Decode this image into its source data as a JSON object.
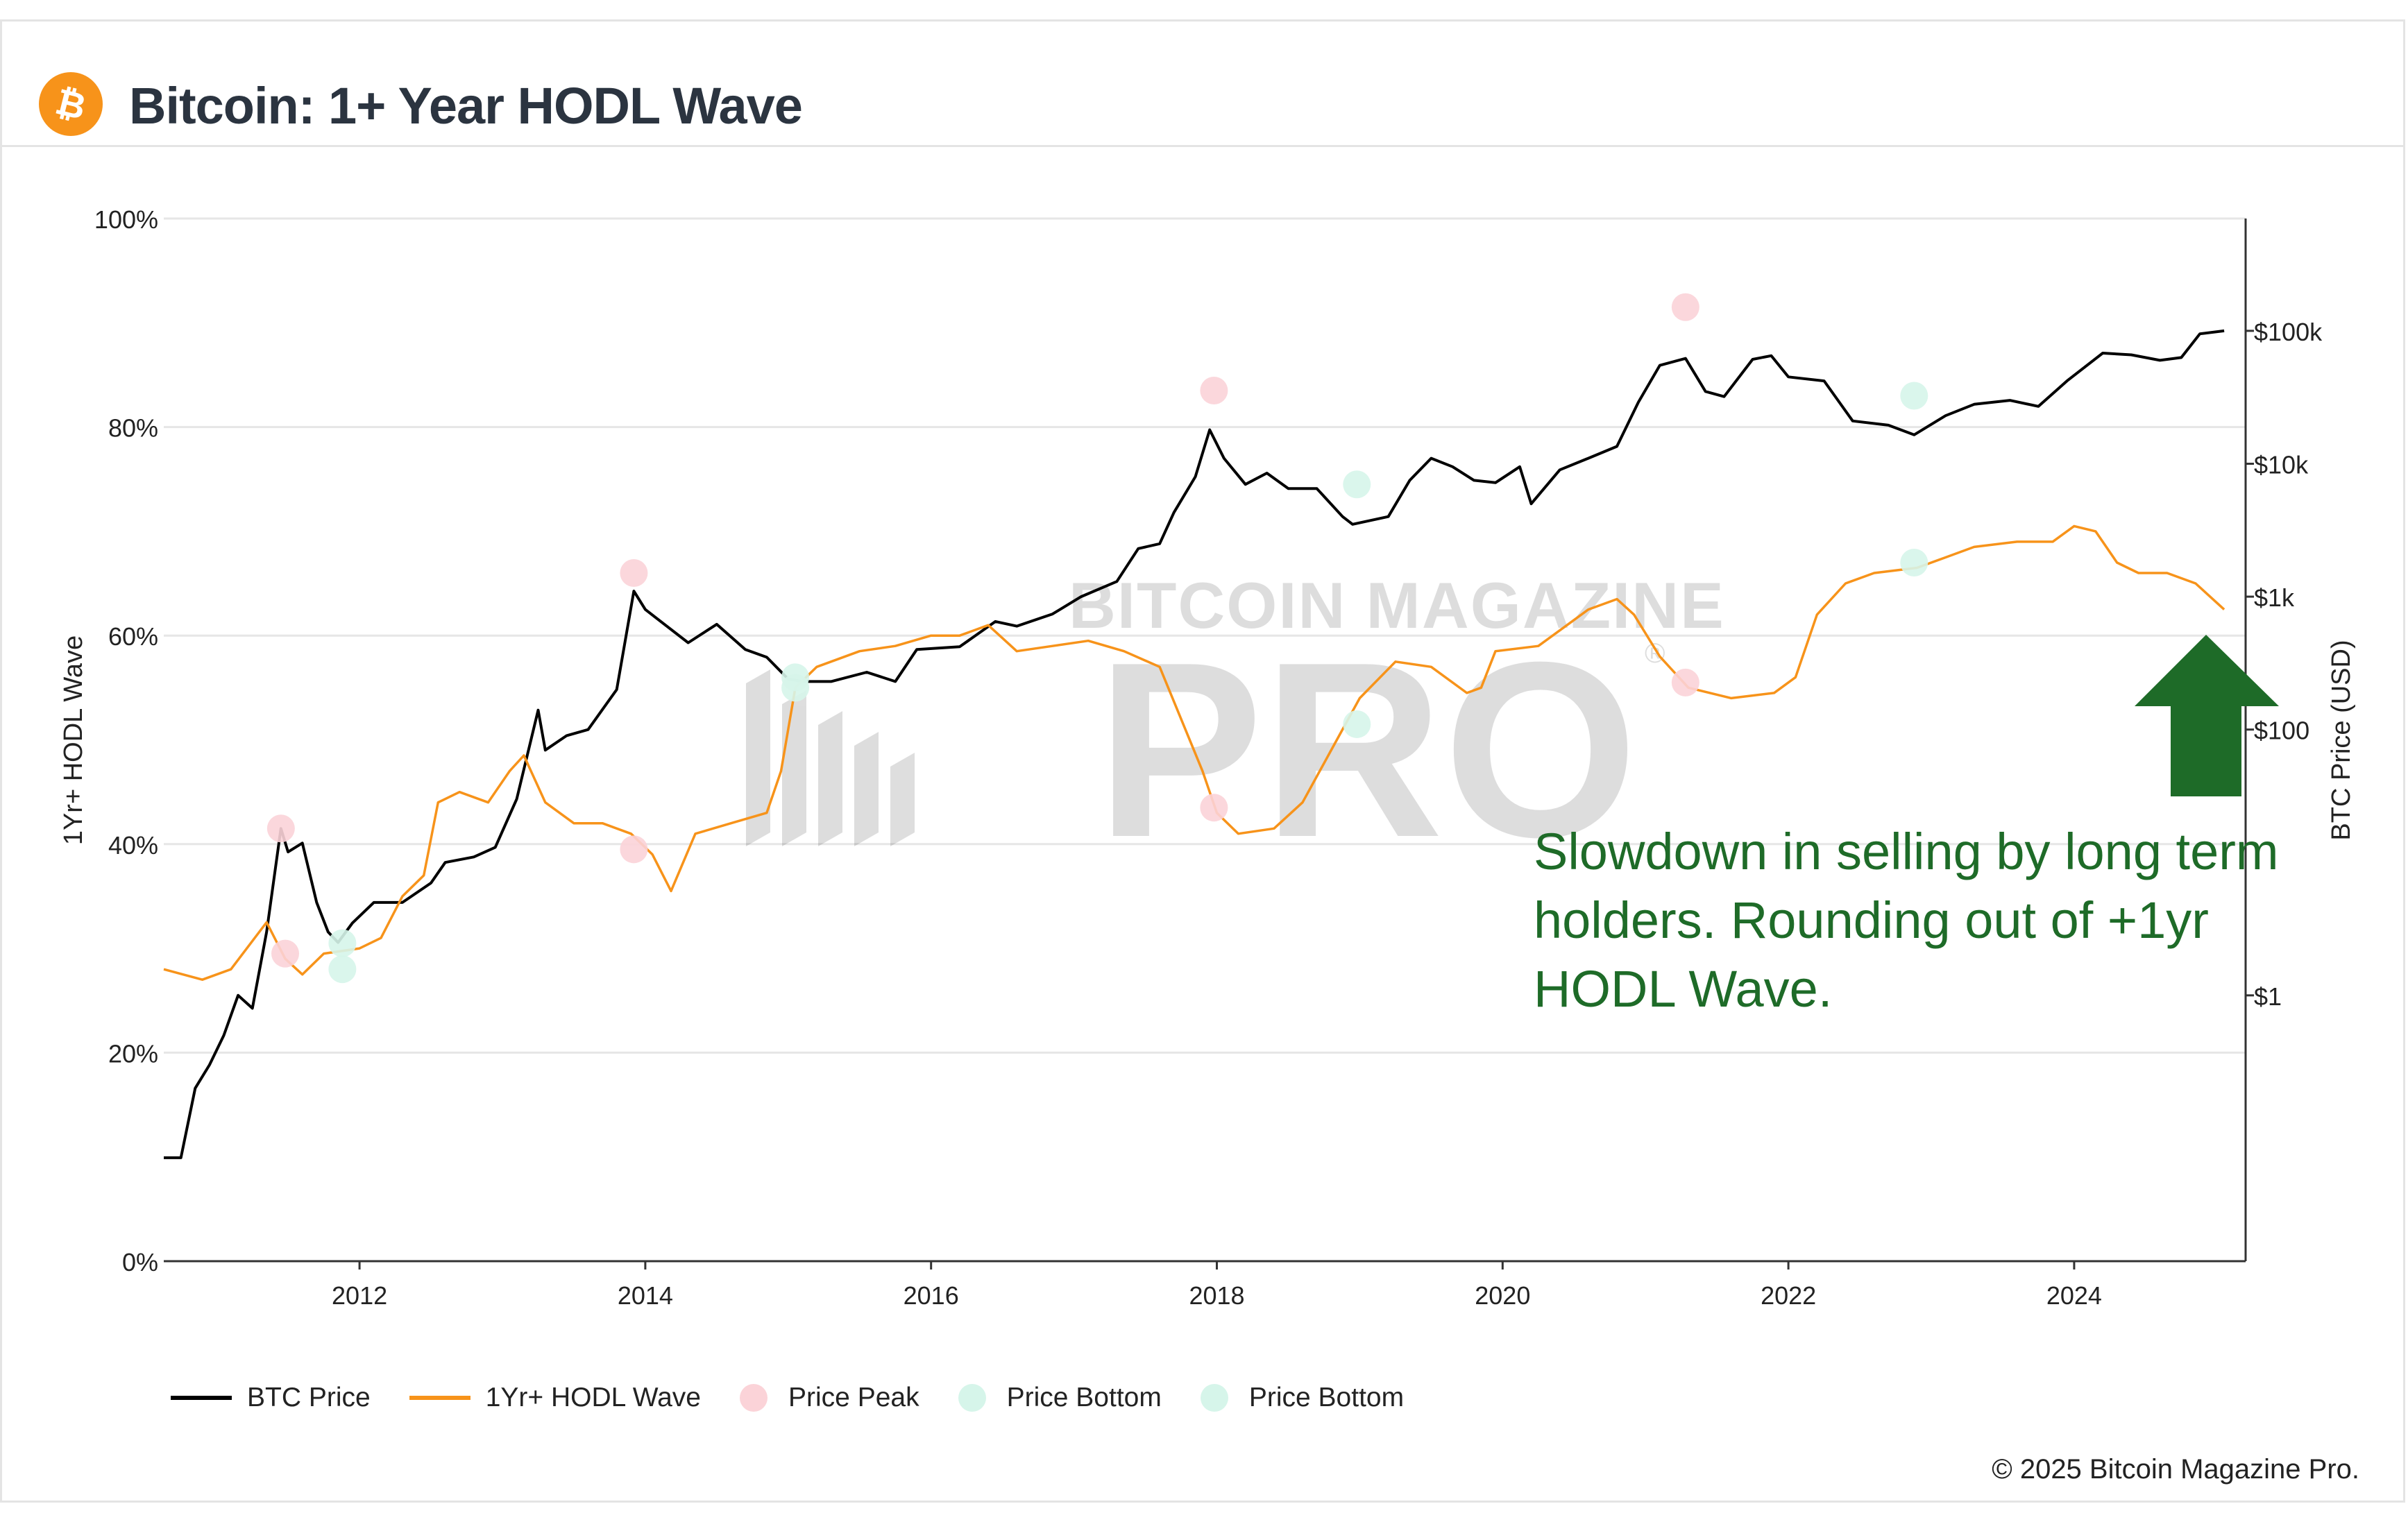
{
  "header": {
    "title": "Bitcoin: 1+ Year HODL Wave",
    "logo_icon": "bitcoin-logo-icon",
    "logo_color": "#f7931a"
  },
  "copyright": "© 2025 Bitcoin Magazine Pro.",
  "watermark": {
    "line1": "BITCOIN MAGAZINE",
    "line2": "PRO",
    "mark": "®"
  },
  "annotation": {
    "text": "Slowdown in selling by long term holders. Rounding out of +1yr HODL Wave.",
    "arrow_icon": "arrow-up-icon",
    "color": "#1e6b28"
  },
  "legend": [
    {
      "label": "BTC Price",
      "kind": "line",
      "color": "#000000"
    },
    {
      "label": "1Yr+ HODL Wave",
      "kind": "line",
      "color": "#f7931a"
    },
    {
      "label": "Price Peak",
      "kind": "dot",
      "color": "#fbd3d8"
    },
    {
      "label": "Price Bottom",
      "kind": "dot",
      "color": "#d6f5ea"
    },
    {
      "label": "Price Bottom",
      "kind": "dot",
      "color": "#d6f5ea"
    }
  ],
  "chart_data": {
    "type": "line",
    "x_axis": {
      "ticks": [
        2012,
        2014,
        2016,
        2018,
        2020,
        2022,
        2024
      ],
      "tick_labels": [
        "2012",
        "2014",
        "2016",
        "2018",
        "2020",
        "2022",
        "2024"
      ],
      "range": [
        2010.63,
        2025.2
      ]
    },
    "y_left": {
      "label": "1Yr+ HODL Wave",
      "ticks": [
        0,
        20,
        40,
        60,
        80,
        100
      ],
      "tick_labels": [
        "0%",
        "20%",
        "40%",
        "60%",
        "80%",
        "100%"
      ],
      "range": [
        0,
        100
      ]
    },
    "y_right": {
      "label": "BTC Price (USD)",
      "scale": "log",
      "ticks": [
        1,
        100,
        1000,
        10000,
        100000
      ],
      "tick_labels": [
        "$1",
        "$100",
        "$1k",
        "$10k",
        "$100k"
      ],
      "range": [
        0.01,
        700000
      ]
    },
    "grid": true,
    "legend_position": "bottom-left",
    "series": [
      {
        "name": "BTC Price",
        "axis": "right",
        "color": "#000000",
        "points": [
          [
            2010.63,
            0.06
          ],
          [
            2010.75,
            0.06
          ],
          [
            2010.85,
            0.2
          ],
          [
            2010.95,
            0.3
          ],
          [
            2011.05,
            0.5
          ],
          [
            2011.15,
            1.0
          ],
          [
            2011.25,
            0.8
          ],
          [
            2011.35,
            3.0
          ],
          [
            2011.45,
            18
          ],
          [
            2011.5,
            12
          ],
          [
            2011.6,
            14
          ],
          [
            2011.7,
            5
          ],
          [
            2011.78,
            3
          ],
          [
            2011.85,
            2.5
          ],
          [
            2011.95,
            3.5
          ],
          [
            2012.1,
            5
          ],
          [
            2012.3,
            5
          ],
          [
            2012.5,
            7
          ],
          [
            2012.6,
            10
          ],
          [
            2012.8,
            11
          ],
          [
            2012.95,
            13
          ],
          [
            2013.1,
            30
          ],
          [
            2013.25,
            140
          ],
          [
            2013.3,
            70
          ],
          [
            2013.45,
            90
          ],
          [
            2013.6,
            100
          ],
          [
            2013.8,
            200
          ],
          [
            2013.92,
            1100
          ],
          [
            2014.0,
            800
          ],
          [
            2014.15,
            600
          ],
          [
            2014.3,
            450
          ],
          [
            2014.5,
            620
          ],
          [
            2014.7,
            400
          ],
          [
            2014.85,
            350
          ],
          [
            2015.0,
            240
          ],
          [
            2015.1,
            230
          ],
          [
            2015.3,
            230
          ],
          [
            2015.55,
            270
          ],
          [
            2015.75,
            230
          ],
          [
            2015.9,
            400
          ],
          [
            2016.2,
            420
          ],
          [
            2016.45,
            650
          ],
          [
            2016.6,
            600
          ],
          [
            2016.85,
            740
          ],
          [
            2017.05,
            1000
          ],
          [
            2017.3,
            1300
          ],
          [
            2017.45,
            2300
          ],
          [
            2017.6,
            2500
          ],
          [
            2017.7,
            4300
          ],
          [
            2017.85,
            8000
          ],
          [
            2017.95,
            18000
          ],
          [
            2018.05,
            11000
          ],
          [
            2018.2,
            7000
          ],
          [
            2018.35,
            8500
          ],
          [
            2018.5,
            6500
          ],
          [
            2018.7,
            6500
          ],
          [
            2018.88,
            4000
          ],
          [
            2018.95,
            3500
          ],
          [
            2019.2,
            4000
          ],
          [
            2019.35,
            7500
          ],
          [
            2019.5,
            11000
          ],
          [
            2019.65,
            9500
          ],
          [
            2019.8,
            7500
          ],
          [
            2019.95,
            7200
          ],
          [
            2020.12,
            9500
          ],
          [
            2020.2,
            5000
          ],
          [
            2020.4,
            9000
          ],
          [
            2020.6,
            11000
          ],
          [
            2020.8,
            13500
          ],
          [
            2020.95,
            29000
          ],
          [
            2021.1,
            55000
          ],
          [
            2021.28,
            62000
          ],
          [
            2021.42,
            35000
          ],
          [
            2021.55,
            32000
          ],
          [
            2021.75,
            61000
          ],
          [
            2021.88,
            65000
          ],
          [
            2022.0,
            45000
          ],
          [
            2022.25,
            42000
          ],
          [
            2022.45,
            21000
          ],
          [
            2022.7,
            19500
          ],
          [
            2022.88,
            16500
          ],
          [
            2023.1,
            23000
          ],
          [
            2023.3,
            28000
          ],
          [
            2023.55,
            30000
          ],
          [
            2023.75,
            27000
          ],
          [
            2023.95,
            42000
          ],
          [
            2024.2,
            68000
          ],
          [
            2024.4,
            66000
          ],
          [
            2024.6,
            60000
          ],
          [
            2024.75,
            63000
          ],
          [
            2024.88,
            95000
          ],
          [
            2025.05,
            100000
          ]
        ]
      },
      {
        "name": "1Yr+ HODL Wave",
        "axis": "left",
        "color": "#f7931a",
        "points": [
          [
            2010.63,
            28
          ],
          [
            2010.9,
            27
          ],
          [
            2011.1,
            28
          ],
          [
            2011.35,
            32.5
          ],
          [
            2011.48,
            29
          ],
          [
            2011.6,
            27.5
          ],
          [
            2011.75,
            29.5
          ],
          [
            2012.0,
            30
          ],
          [
            2012.15,
            31
          ],
          [
            2012.3,
            35
          ],
          [
            2012.45,
            37
          ],
          [
            2012.55,
            44
          ],
          [
            2012.7,
            45
          ],
          [
            2012.9,
            44
          ],
          [
            2013.05,
            47
          ],
          [
            2013.15,
            48.5
          ],
          [
            2013.3,
            44
          ],
          [
            2013.5,
            42
          ],
          [
            2013.7,
            42
          ],
          [
            2013.9,
            41
          ],
          [
            2014.05,
            39
          ],
          [
            2014.18,
            35.5
          ],
          [
            2014.35,
            41
          ],
          [
            2014.6,
            42
          ],
          [
            2014.85,
            43
          ],
          [
            2014.95,
            47
          ],
          [
            2015.05,
            55
          ],
          [
            2015.2,
            57
          ],
          [
            2015.5,
            58.5
          ],
          [
            2015.75,
            59
          ],
          [
            2016.0,
            60
          ],
          [
            2016.2,
            60
          ],
          [
            2016.4,
            61
          ],
          [
            2016.6,
            58.5
          ],
          [
            2016.85,
            59
          ],
          [
            2017.1,
            59.5
          ],
          [
            2017.35,
            58.5
          ],
          [
            2017.6,
            57
          ],
          [
            2017.75,
            52
          ],
          [
            2017.9,
            47
          ],
          [
            2018.0,
            43
          ],
          [
            2018.15,
            41
          ],
          [
            2018.4,
            41.5
          ],
          [
            2018.6,
            44
          ],
          [
            2018.8,
            49
          ],
          [
            2019.0,
            54
          ],
          [
            2019.25,
            57.5
          ],
          [
            2019.5,
            57
          ],
          [
            2019.75,
            54.5
          ],
          [
            2019.85,
            55
          ],
          [
            2019.95,
            58.5
          ],
          [
            2020.25,
            59
          ],
          [
            2020.45,
            61
          ],
          [
            2020.6,
            62.5
          ],
          [
            2020.8,
            63.5
          ],
          [
            2020.92,
            62
          ],
          [
            2021.1,
            58
          ],
          [
            2021.3,
            55
          ],
          [
            2021.6,
            54
          ],
          [
            2021.9,
            54.5
          ],
          [
            2022.05,
            56
          ],
          [
            2022.2,
            62
          ],
          [
            2022.4,
            65
          ],
          [
            2022.6,
            66
          ],
          [
            2022.9,
            66.5
          ],
          [
            2023.1,
            67.5
          ],
          [
            2023.3,
            68.5
          ],
          [
            2023.6,
            69
          ],
          [
            2023.85,
            69
          ],
          [
            2024.0,
            70.5
          ],
          [
            2024.15,
            70
          ],
          [
            2024.3,
            67
          ],
          [
            2024.45,
            66
          ],
          [
            2024.65,
            66
          ],
          [
            2024.85,
            65
          ],
          [
            2025.05,
            62.5
          ]
        ]
      }
    ],
    "markers": [
      {
        "type": "Price Peak",
        "color": "#fbd3d8",
        "points": [
          [
            2011.45,
            41.5
          ],
          [
            2011.48,
            29.5
          ],
          [
            2013.92,
            66
          ],
          [
            2013.92,
            39.5
          ],
          [
            2017.98,
            83.5
          ],
          [
            2017.98,
            43.5
          ],
          [
            2021.28,
            91.5
          ],
          [
            2021.28,
            55.5
          ]
        ]
      },
      {
        "type": "Price Bottom",
        "color": "#d6f5ea",
        "points": [
          [
            2011.88,
            28
          ],
          [
            2011.88,
            30.5
          ],
          [
            2015.05,
            55
          ],
          [
            2015.05,
            56
          ],
          [
            2018.98,
            74.5
          ],
          [
            2018.98,
            51.5
          ],
          [
            2022.88,
            83
          ],
          [
            2022.88,
            67
          ]
        ]
      }
    ]
  }
}
